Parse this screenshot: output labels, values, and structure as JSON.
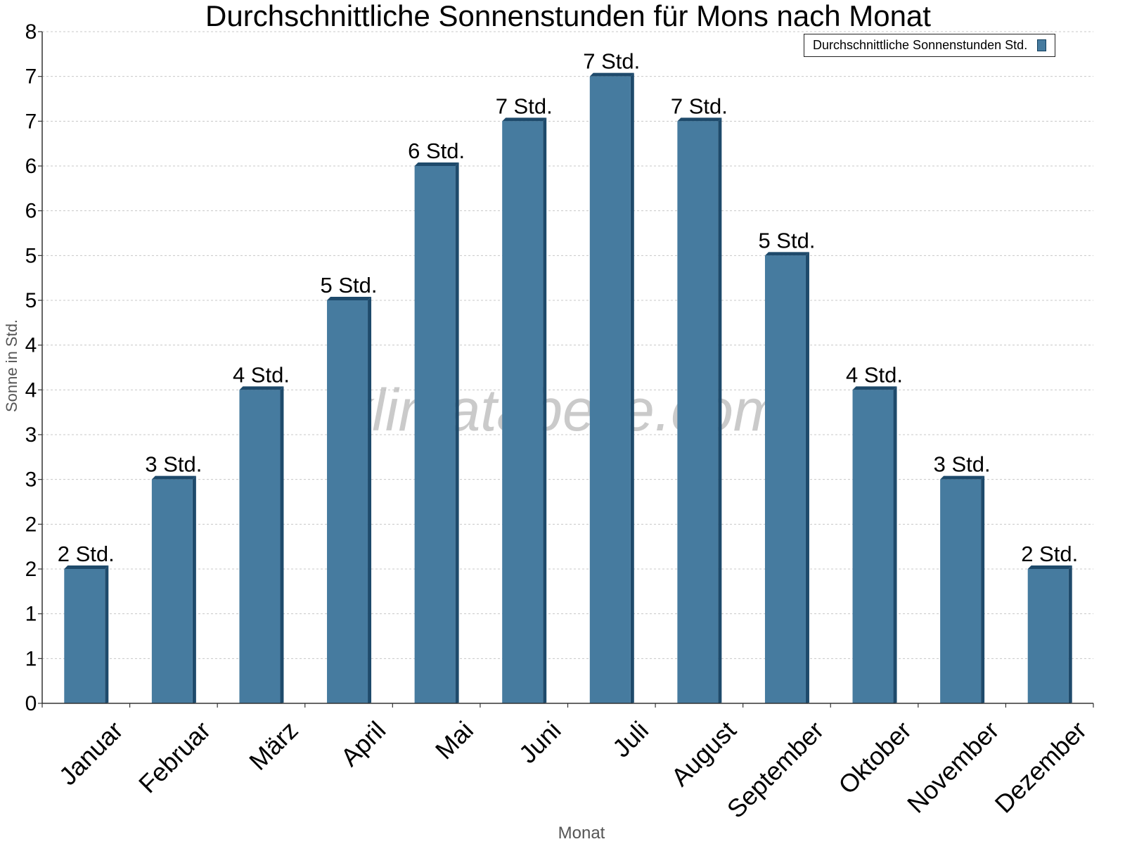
{
  "colors": {
    "bar": "#467b9f",
    "bar_side": "#1e4a6b",
    "grid": "#c8c8c8",
    "axis": "#333333",
    "watermark": "#b8b8b8"
  },
  "watermark": "klimatabelle.com",
  "chart_data": {
    "type": "bar",
    "title": "Durchschnittliche Sonnenstunden für Mons nach Monat",
    "xlabel": "Monat",
    "ylabel": "Sonne in Std.",
    "categories": [
      "Januar",
      "Februar",
      "März",
      "April",
      "Mai",
      "Juni",
      "Juli",
      "August",
      "September",
      "Oktober",
      "November",
      "Dezember"
    ],
    "series": [
      {
        "name": "Durchschnittliche Sonnenstunden Std.",
        "values": [
          1.5,
          2.5,
          3.5,
          4.5,
          6,
          6.5,
          7,
          6.5,
          5,
          3.5,
          2.5,
          1.5
        ],
        "labels": [
          "2 Std.",
          "3 Std.",
          "4 Std.",
          "5 Std.",
          "6 Std.",
          "7 Std.",
          "7 Std.",
          "7 Std.",
          "5 Std.",
          "4 Std.",
          "3 Std.",
          "2 Std."
        ]
      }
    ],
    "ylim": [
      0,
      7.5
    ],
    "yticks": [
      0,
      0.5,
      1,
      1.5,
      2,
      2.5,
      3,
      3.5,
      4,
      4.5,
      5,
      5.5,
      6,
      6.5,
      7,
      7.5
    ],
    "ytick_labels": [
      "0",
      "1",
      "1",
      "2",
      "2",
      "3",
      "3",
      "4",
      "4",
      "5",
      "5",
      "6",
      "6",
      "7",
      "7",
      "8"
    ],
    "grid": true,
    "legend_position": "top-right"
  }
}
